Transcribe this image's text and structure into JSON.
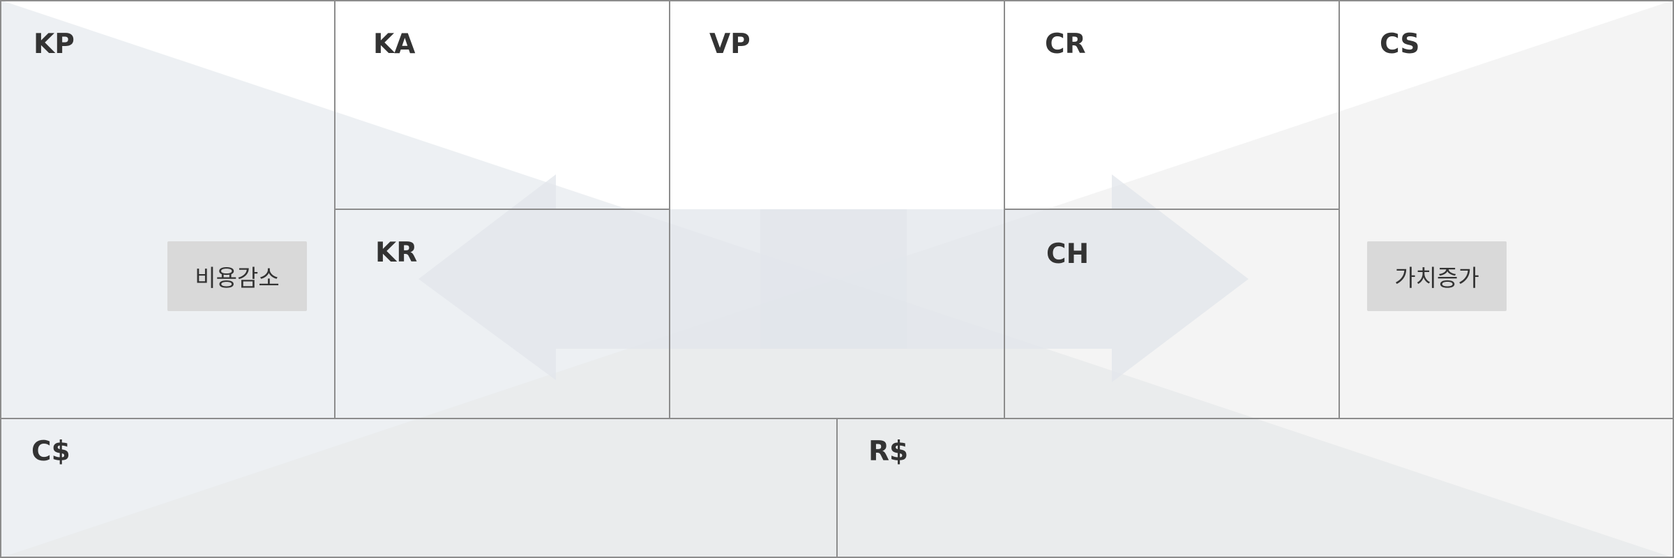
{
  "canvas": {
    "blocks": {
      "kp": "KP",
      "ka": "KA",
      "kr": "KR",
      "vp": "VP",
      "cr": "CR",
      "ch": "CH",
      "cs": "CS",
      "cost": "C$",
      "revenue": "R$"
    },
    "tags": {
      "cost_reduction": "비용감소",
      "value_increase": "가치증가"
    }
  },
  "colors": {
    "cost_side_overlay": "#e1e6eb",
    "value_side_overlay": "#e6e6e6",
    "grid_line": "#8c8c8c",
    "label_text": "#333333",
    "tag_background": "#d9d9d9"
  },
  "icons": {
    "left_arrow": "arrow-left-icon",
    "right_arrow": "arrow-right-icon"
  }
}
